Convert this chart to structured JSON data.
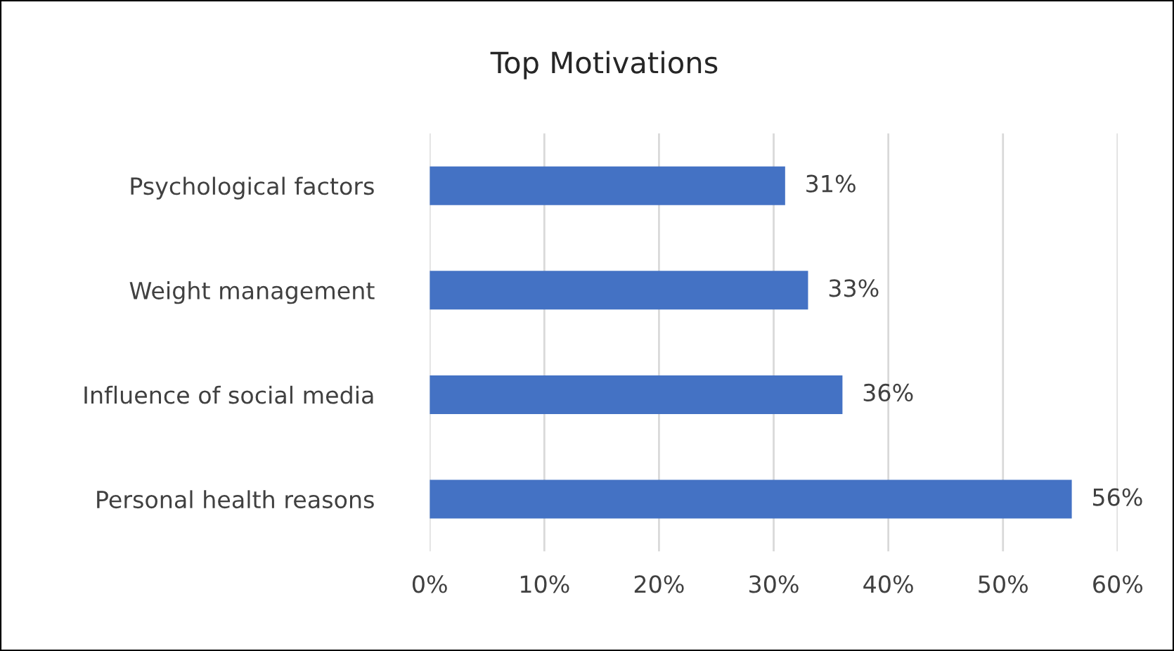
{
  "chart_data": {
    "type": "bar",
    "orientation": "horizontal",
    "title": "Top Motivations",
    "categories": [
      "Psychological factors",
      "Weight management",
      "Influence of social media",
      "Personal health reasons"
    ],
    "values": [
      31,
      33,
      36,
      56
    ],
    "color": "#4472c4",
    "value_labels": [
      "31%",
      "33%",
      "36%",
      "56%"
    ],
    "xlim": [
      0,
      60
    ],
    "xticks": [
      {
        "value": 0,
        "label": "0%"
      },
      {
        "value": 10,
        "label": "10%"
      },
      {
        "value": 20,
        "label": "20%"
      },
      {
        "value": 30,
        "label": "30%"
      },
      {
        "value": 40,
        "label": "40%"
      },
      {
        "value": 50,
        "label": "50%"
      },
      {
        "value": 60,
        "label": "60%"
      }
    ],
    "grid": "x",
    "legend": false
  }
}
